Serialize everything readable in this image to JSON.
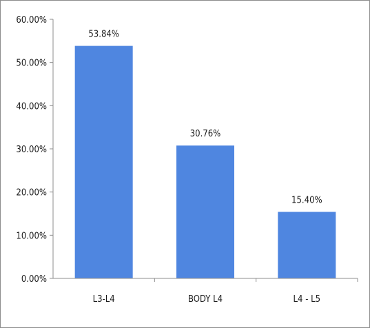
{
  "chart_data": {
    "type": "bar",
    "title": "",
    "xlabel": "",
    "ylabel": "",
    "categories": [
      "L3-L4",
      "BODY L4",
      "L4 - L5"
    ],
    "values": [
      53.84,
      30.76,
      15.4
    ],
    "data_labels": [
      "53.84%",
      "30.76%",
      "15.40%"
    ],
    "ylim": [
      0,
      60
    ],
    "yticks": [
      0,
      10,
      20,
      30,
      40,
      50,
      60
    ],
    "ytick_labels": [
      "0.00%",
      "10.00%",
      "20.00%",
      "30.00%",
      "40.00%",
      "50.00%",
      "60.00%"
    ],
    "grid": false,
    "legend": "none",
    "bar_color": "#4f86e0"
  }
}
